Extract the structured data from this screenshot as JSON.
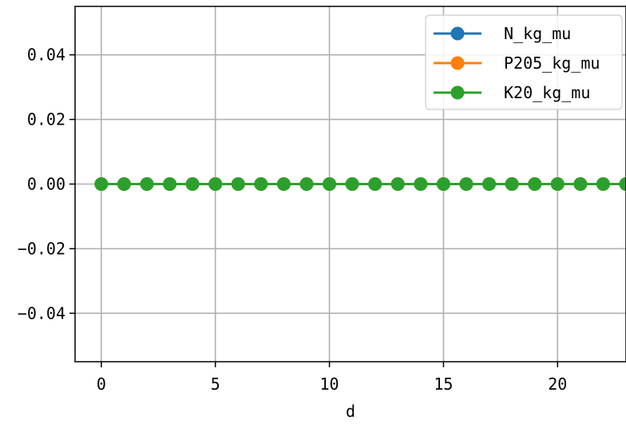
{
  "chart_data": {
    "type": "line",
    "title": "",
    "xlabel": "d",
    "ylabel": "",
    "x": [
      0,
      1,
      2,
      3,
      4,
      5,
      6,
      7,
      8,
      9,
      10,
      11,
      12,
      13,
      14,
      15,
      16,
      17,
      18,
      19,
      20,
      21,
      22,
      23
    ],
    "series": [
      {
        "name": "N_kg_mu",
        "values": [
          0,
          0,
          0,
          0,
          0,
          0,
          0,
          0,
          0,
          0,
          0,
          0,
          0,
          0,
          0,
          0,
          0,
          0,
          0,
          0,
          0,
          0,
          0,
          0
        ],
        "color": "#1f77b4"
      },
      {
        "name": "P205_kg_mu",
        "values": [
          0,
          0,
          0,
          0,
          0,
          0,
          0,
          0,
          0,
          0,
          0,
          0,
          0,
          0,
          0,
          0,
          0,
          0,
          0,
          0,
          0,
          0,
          0,
          0
        ],
        "color": "#ff7f0e"
      },
      {
        "name": "K20_kg_mu",
        "values": [
          0,
          0,
          0,
          0,
          0,
          0,
          0,
          0,
          0,
          0,
          0,
          0,
          0,
          0,
          0,
          0,
          0,
          0,
          0,
          0,
          0,
          0,
          0,
          0
        ],
        "color": "#2ca02c"
      }
    ],
    "xlim": [
      -1.15,
      23
    ],
    "ylim": [
      -0.055,
      0.055
    ],
    "xticks": [
      0,
      5,
      10,
      15,
      20
    ],
    "xtick_labels": [
      "0",
      "5",
      "10",
      "15",
      "20"
    ],
    "yticks": [
      0.04,
      0.02,
      0.0,
      -0.02,
      -0.04
    ],
    "ytick_labels": [
      "0.04",
      "0.02",
      "0.00",
      "−0.02",
      "−0.04"
    ],
    "grid": true,
    "legend_position": "top-right",
    "marker": "circle"
  }
}
